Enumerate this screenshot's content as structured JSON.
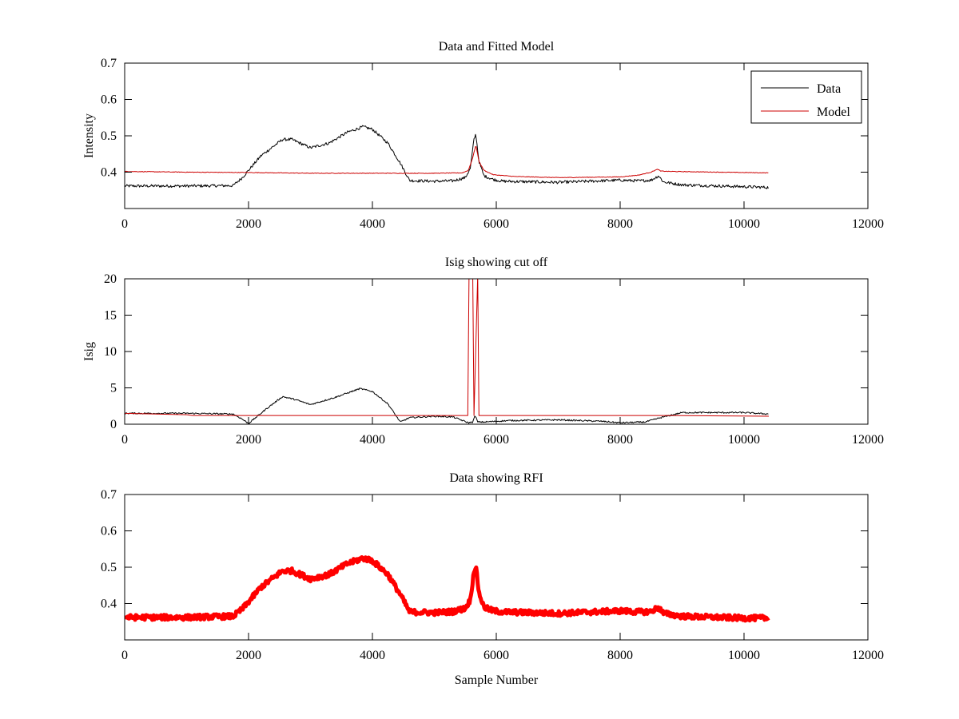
{
  "figure": {
    "colors": {
      "data": "#000000",
      "model": "#cc0000",
      "rfi": "#ff0000",
      "axes": "#000000",
      "background": "#ffffff"
    }
  },
  "chart_data": [
    {
      "type": "line",
      "title": "Data and Fitted Model",
      "xlabel": "",
      "ylabel": "Intensity",
      "xlim": [
        0,
        12000
      ],
      "ylim": [
        0.3,
        0.7
      ],
      "xticks": [
        0,
        2000,
        4000,
        6000,
        8000,
        10000,
        12000
      ],
      "yticks": [
        0.4,
        0.5,
        0.6,
        0.7
      ],
      "xtick_labels": [
        "0",
        "2000",
        "4000",
        "6000",
        "8000",
        "10000",
        "12000"
      ],
      "ytick_labels": [
        "0.4",
        "0.5",
        "0.6",
        "0.7"
      ],
      "legend": {
        "position": "top-right",
        "entries": [
          "Data",
          "Model"
        ]
      },
      "series": [
        {
          "name": "Data",
          "color": "#000000",
          "noise": 0.004,
          "x": [
            0,
            1000,
            1750,
            1900,
            2200,
            2550,
            2700,
            3000,
            3300,
            3600,
            3850,
            4000,
            4250,
            4450,
            4600,
            5000,
            5300,
            5500,
            5580,
            5640,
            5670,
            5720,
            5800,
            5950,
            6100,
            7000,
            8000,
            8300,
            8500,
            8550,
            8620,
            8700,
            9000,
            10000,
            10400
          ],
          "values": [
            0.362,
            0.362,
            0.363,
            0.385,
            0.445,
            0.49,
            0.49,
            0.467,
            0.48,
            0.51,
            0.525,
            0.518,
            0.48,
            0.425,
            0.377,
            0.375,
            0.376,
            0.385,
            0.41,
            0.49,
            0.505,
            0.43,
            0.39,
            0.38,
            0.375,
            0.372,
            0.378,
            0.376,
            0.378,
            0.383,
            0.39,
            0.373,
            0.365,
            0.36,
            0.358
          ]
        },
        {
          "name": "Model",
          "color": "#cc0000",
          "noise": 0.0008,
          "x": [
            0,
            1000,
            2000,
            3000,
            4000,
            5000,
            5450,
            5550,
            5620,
            5670,
            5720,
            5800,
            5950,
            6300,
            7000,
            8000,
            8300,
            8500,
            8560,
            8610,
            8650,
            8800,
            10400
          ],
          "values": [
            0.402,
            0.4,
            0.399,
            0.397,
            0.397,
            0.397,
            0.398,
            0.405,
            0.44,
            0.475,
            0.43,
            0.405,
            0.393,
            0.388,
            0.385,
            0.387,
            0.392,
            0.4,
            0.405,
            0.408,
            0.403,
            0.402,
            0.398
          ]
        }
      ]
    },
    {
      "type": "line",
      "title": "Isig showing cut off",
      "xlabel": "",
      "ylabel": "Isig",
      "xlim": [
        0,
        12000
      ],
      "ylim": [
        0,
        20
      ],
      "xticks": [
        0,
        2000,
        4000,
        6000,
        8000,
        10000,
        12000
      ],
      "yticks": [
        0,
        5,
        10,
        15,
        20
      ],
      "xtick_labels": [
        "0",
        "2000",
        "4000",
        "6000",
        "8000",
        "10000",
        "12000"
      ],
      "ytick_labels": [
        "0",
        "5",
        "10",
        "15",
        "20"
      ],
      "series": [
        {
          "name": "Isig",
          "color": "#000000",
          "noise": 0.1,
          "x": [
            0,
            1000,
            1750,
            1880,
            2000,
            2300,
            2550,
            2750,
            3000,
            3400,
            3800,
            4000,
            4250,
            4450,
            4600,
            5000,
            5300,
            5550,
            5620,
            5660,
            5700,
            5800,
            6200,
            7000,
            7700,
            8000,
            8400,
            8700,
            9000,
            10000,
            10400
          ],
          "values": [
            1.5,
            1.5,
            1.4,
            0.8,
            0.1,
            2.2,
            3.8,
            3.4,
            2.7,
            3.7,
            4.9,
            4.5,
            2.8,
            0.3,
            0.9,
            1.1,
            1.0,
            0.2,
            0.3,
            1.2,
            0.3,
            0.3,
            0.5,
            0.6,
            0.4,
            0.2,
            0.3,
            1.0,
            1.6,
            1.6,
            1.4
          ]
        },
        {
          "name": "Cut off",
          "color": "#cc0000",
          "noise": 0,
          "x": [
            0,
            1000,
            1100,
            5540,
            5560,
            5620,
            5640,
            5700,
            5720,
            8700,
            8800,
            10400
          ],
          "values": [
            1.5,
            1.3,
            1.2,
            1.2,
            20.5,
            20.5,
            1.2,
            20.5,
            1.2,
            1.2,
            1.2,
            1.1
          ]
        }
      ]
    },
    {
      "type": "line",
      "title": "Data showing RFI",
      "xlabel": "Sample Number",
      "ylabel": "",
      "xlim": [
        0,
        12000
      ],
      "ylim": [
        0.3,
        0.7
      ],
      "xticks": [
        0,
        2000,
        4000,
        6000,
        8000,
        10000,
        12000
      ],
      "yticks": [
        0.4,
        0.5,
        0.6,
        0.7
      ],
      "xtick_labels": [
        "0",
        "2000",
        "4000",
        "6000",
        "8000",
        "10000",
        "12000"
      ],
      "ytick_labels": [
        "0.4",
        "0.5",
        "0.6",
        "0.7"
      ],
      "series": [
        {
          "name": "RFI",
          "color": "#ff0000",
          "noise": 0.007,
          "stroke": "thick",
          "x": [
            0,
            1000,
            1750,
            1900,
            2200,
            2550,
            2700,
            3000,
            3300,
            3600,
            3850,
            4000,
            4250,
            4450,
            4600,
            5000,
            5300,
            5500,
            5580,
            5640,
            5670,
            5720,
            5800,
            5950,
            6100,
            7000,
            8000,
            8300,
            8500,
            8550,
            8620,
            8700,
            9000,
            10000,
            10400
          ],
          "values": [
            0.362,
            0.362,
            0.365,
            0.385,
            0.445,
            0.49,
            0.49,
            0.468,
            0.48,
            0.51,
            0.525,
            0.518,
            0.48,
            0.425,
            0.377,
            0.375,
            0.378,
            0.387,
            0.41,
            0.49,
            0.503,
            0.43,
            0.39,
            0.38,
            0.377,
            0.373,
            0.38,
            0.377,
            0.378,
            0.383,
            0.39,
            0.373,
            0.365,
            0.36,
            0.36
          ]
        }
      ]
    }
  ]
}
